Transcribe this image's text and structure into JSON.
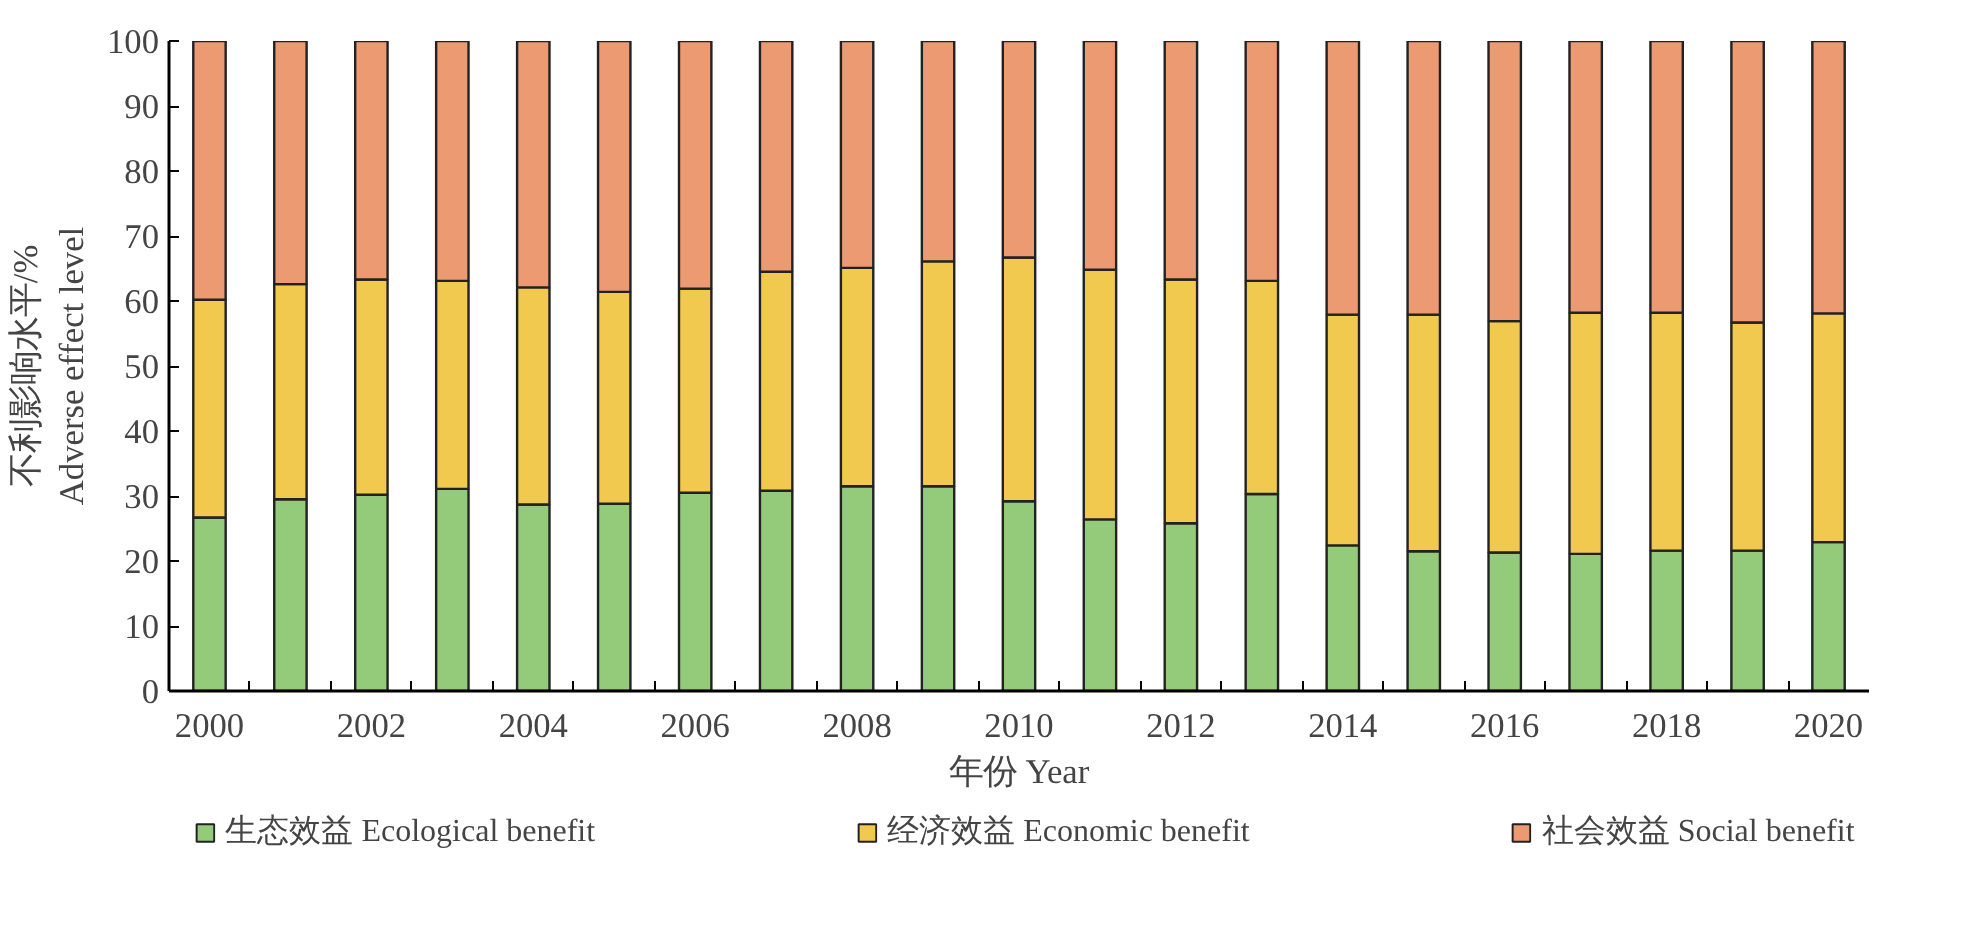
{
  "chart_data": {
    "type": "bar",
    "stacked": true,
    "categories": [
      "2000",
      null,
      "2002",
      null,
      "2004",
      null,
      "2006",
      null,
      "2008",
      null,
      "2010",
      null,
      "2012",
      null,
      "2014",
      null,
      "2016",
      null,
      "2018",
      null,
      "2020"
    ],
    "xlabel": "年份 Year",
    "ylabel": "不利影响水平/%\nAdverse effect level",
    "ylim": [
      0,
      100
    ],
    "yticks": [
      0,
      10,
      20,
      30,
      40,
      50,
      60,
      70,
      80,
      90,
      100
    ],
    "grid": false,
    "legend": "bottom",
    "series": [
      {
        "name": "生态效益 Ecological benefit",
        "color": "#93cb7b",
        "values": [
          26.7,
          29.5,
          30.2,
          31.1,
          28.7,
          28.8,
          30.5,
          30.8,
          31.5,
          31.5,
          29.2,
          26.4,
          25.8,
          30.3,
          22.4,
          21.5,
          21.3,
          21.1,
          21.6,
          21.6,
          22.9
        ]
      },
      {
        "name": "经济效益 Economic benefit",
        "color": "#f2c94f",
        "values": [
          33.5,
          33.1,
          33.1,
          32.0,
          33.4,
          32.6,
          31.4,
          33.7,
          33.6,
          34.6,
          37.5,
          38.4,
          37.5,
          32.8,
          35.5,
          36.4,
          35.6,
          37.1,
          36.6,
          35.1,
          35.2
        ]
      },
      {
        "name": "社会效益 Social benefit",
        "color": "#ec9a72",
        "values": [
          39.8,
          37.4,
          36.7,
          36.9,
          37.9,
          38.6,
          38.1,
          35.5,
          34.9,
          33.9,
          33.3,
          35.2,
          36.7,
          36.9,
          42.1,
          42.1,
          43.1,
          41.8,
          41.8,
          43.3,
          41.9
        ]
      }
    ]
  }
}
